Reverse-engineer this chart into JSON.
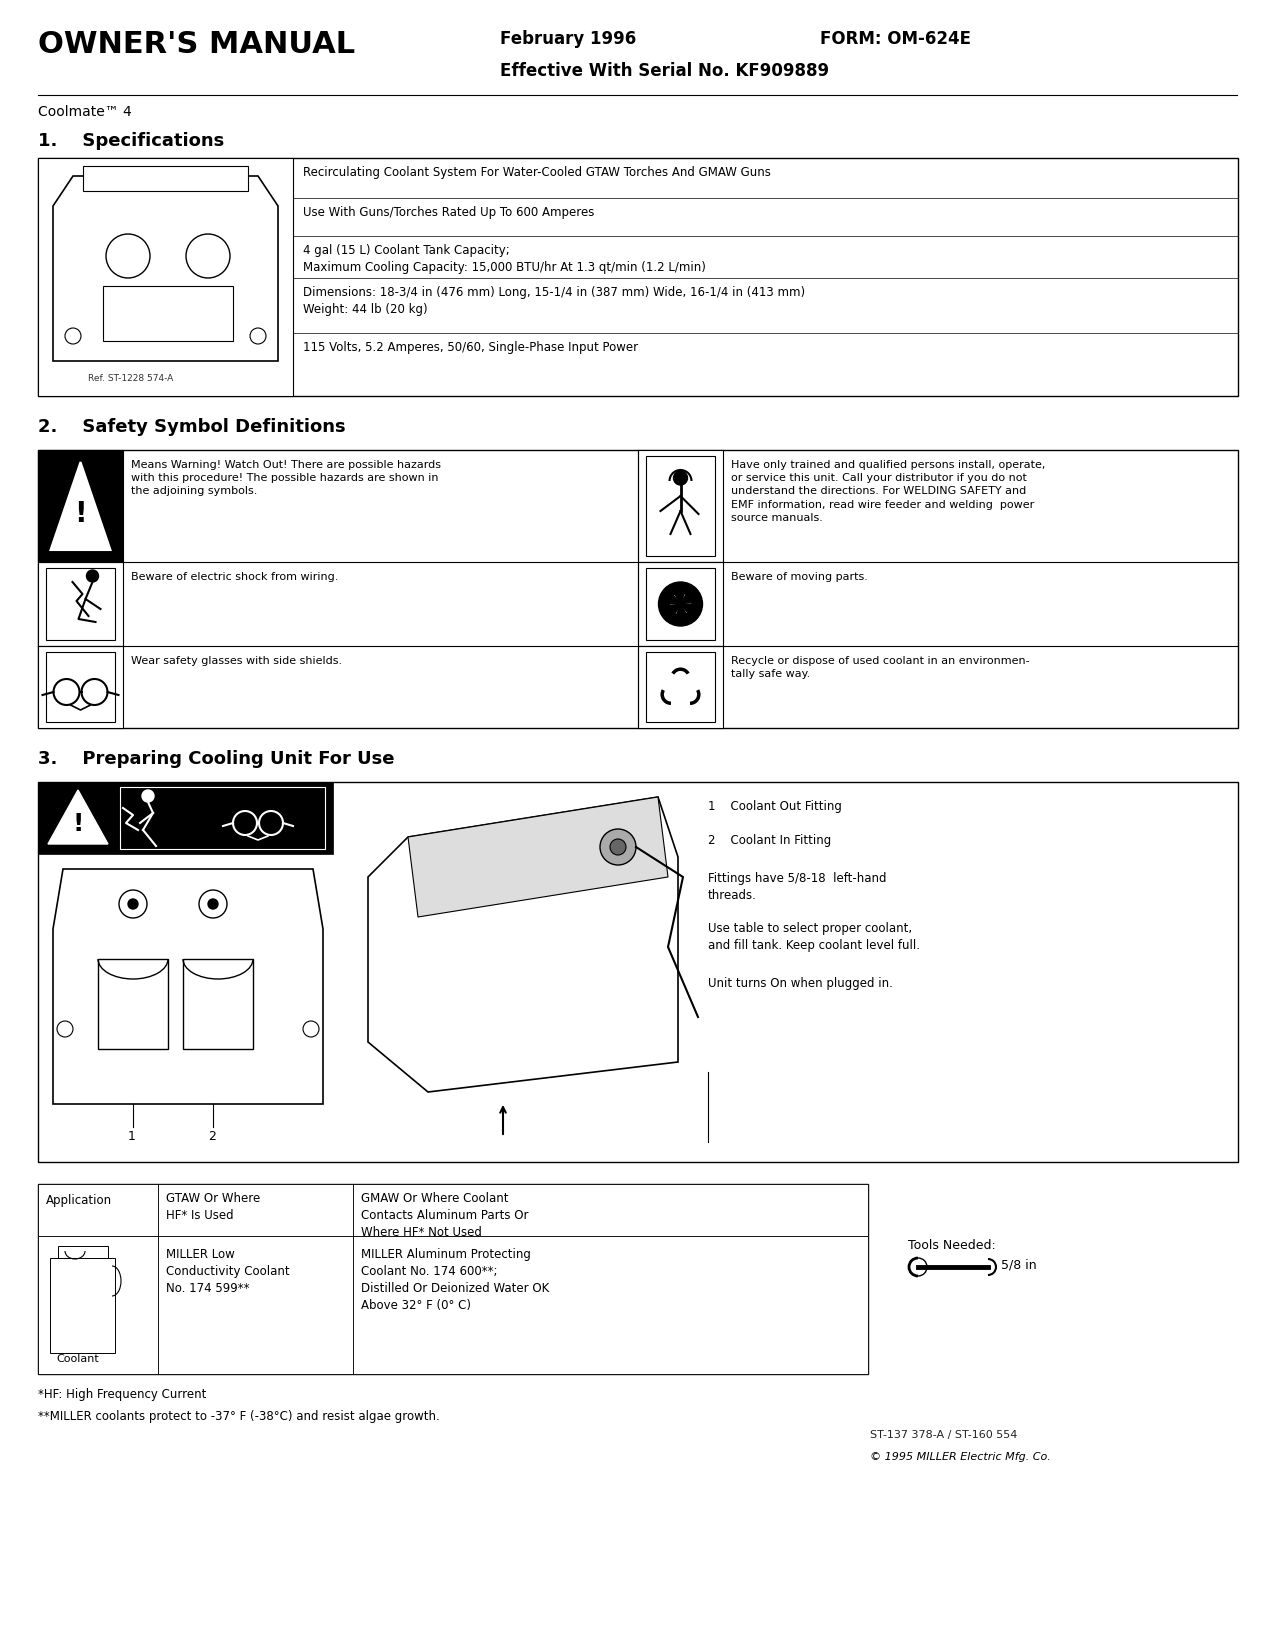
{
  "title": "OWNER'S MANUAL",
  "date_text": "February 1996",
  "form_text": "FORM: OM-624E",
  "serial_text": "Effective With Serial No. KF909889",
  "model_text": "Coolmate™ 4",
  "section1_title": "1.    Specifications",
  "section2_title": "2.    Safety Symbol Definitions",
  "section3_title": "3.    Preparing Cooling Unit For Use",
  "spec_lines": [
    "Recirculating Coolant System For Water-Cooled GTAW Torches And GMAW Guns",
    "Use With Guns/Torches Rated Up To 600 Amperes",
    "4 gal (15 L) Coolant Tank Capacity;\nMaximum Cooling Capacity: 15,000 BTU/hr At 1.3 qt/min (1.2 L/min)",
    "Dimensions: 18-3/4 in (476 mm) Long, 15-1/4 in (387 mm) Wide, 16-1/4 in (413 mm)\nWeight: 44 lb (20 kg)",
    "115 Volts, 5.2 Amperes, 50/60, Single-Phase Input Power"
  ],
  "ref_text": "Ref. ST-1228 574-A",
  "safety_left_texts": [
    "Means Warning! Watch Out! There are possible hazards\nwith this procedure! The possible hazards are shown in\nthe adjoining symbols.",
    "Beware of electric shock from wiring.",
    "Wear safety glasses with side shields."
  ],
  "safety_right_texts": [
    "Have only trained and qualified persons install, operate,\nor service this unit. Call your distributor if you do not\nunderstand the directions. For WELDING SAFETY and\nEMF information, read wire feeder and welding  power\nsource manuals.",
    "Beware of moving parts.",
    "Recycle or dispose of used coolant in an environmen-\ntally safe way."
  ],
  "s3_text1": "1    Coolant Out Fitting",
  "s3_text2": "2    Coolant In Fitting",
  "s3_text3": "Fittings have 5/8-18  left-hand\nthreads.",
  "s3_text4": "Use table to select proper coolant,\nand fill tank. Keep coolant level full.",
  "s3_text5": "Unit turns On when plugged in.",
  "tbl_h0": "Application",
  "tbl_h1": "GTAW Or Where\nHF* Is Used",
  "tbl_h2": "GMAW Or Where Coolant\nContacts Aluminum Parts Or\nWhere HF* Not Used",
  "tbl_d0": "Coolant",
  "tbl_d1": "MILLER Low\nConductivity Coolant\nNo. 174 599**",
  "tbl_d2": "MILLER Aluminum Protecting\nCoolant No. 174 600**;\nDistilled Or Deionized Water OK\nAbove 32° F (0° C)",
  "tools_text": "Tools Needed:",
  "tools_size": "5/8 in",
  "footnote1": "*HF: High Frequency Current",
  "footnote2": "**MILLER coolants protect to -37° F (-38°C) and resist algae growth.",
  "ref_code": "ST-137 378-A / ST-160 554",
  "copyright": "© 1995 MILLER Electric Mfg. Co."
}
